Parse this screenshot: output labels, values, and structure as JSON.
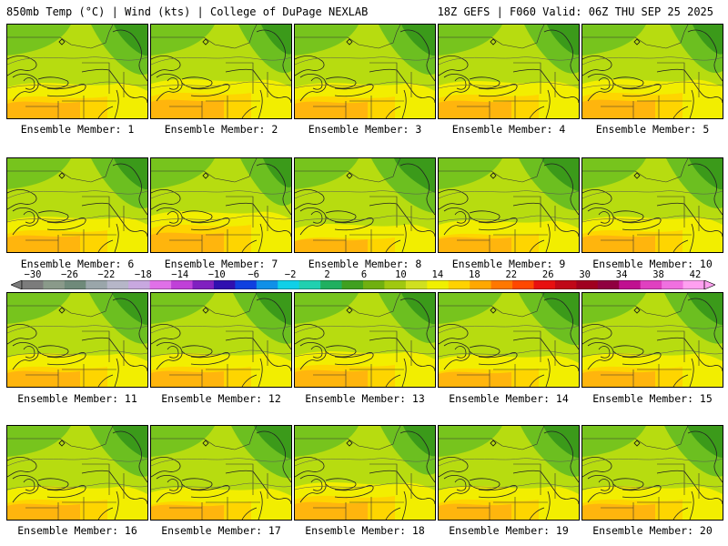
{
  "header": {
    "left": "850mb Temp (°C) | Wind (kts) | College of DuPage NEXLAB",
    "right": "18Z GEFS | F060 Valid: 06Z THU SEP 25 2025"
  },
  "members": [
    {
      "label": "Ensemble Member: 1",
      "warmth": 0.55
    },
    {
      "label": "Ensemble Member: 2",
      "warmth": 0.65
    },
    {
      "label": "Ensemble Member: 3",
      "warmth": 0.55
    },
    {
      "label": "Ensemble Member: 4",
      "warmth": 0.6
    },
    {
      "label": "Ensemble Member: 5",
      "warmth": 0.65
    },
    {
      "label": "Ensemble Member: 6",
      "warmth": 0.55
    },
    {
      "label": "Ensemble Member: 7",
      "warmth": 0.7
    },
    {
      "label": "Ensemble Member: 8",
      "warmth": 0.35
    },
    {
      "label": "Ensemble Member: 9",
      "warmth": 0.45
    },
    {
      "label": "Ensemble Member: 10",
      "warmth": 0.55
    },
    {
      "label": "Ensemble Member: 11",
      "warmth": 0.5
    },
    {
      "label": "Ensemble Member: 12",
      "warmth": 0.5
    },
    {
      "label": "Ensemble Member: 13",
      "warmth": 0.55
    },
    {
      "label": "Ensemble Member: 14",
      "warmth": 0.45
    },
    {
      "label": "Ensemble Member: 15",
      "warmth": 0.5
    },
    {
      "label": "Ensemble Member: 16",
      "warmth": 0.5
    },
    {
      "label": "Ensemble Member: 17",
      "warmth": 0.45
    },
    {
      "label": "Ensemble Member: 18",
      "warmth": 0.6
    },
    {
      "label": "Ensemble Member: 19",
      "warmth": 0.5
    },
    {
      "label": "Ensemble Member: 20",
      "warmth": 0.5
    }
  ],
  "colorbar": {
    "ticks": [
      "−30",
      "−26",
      "−22",
      "−18",
      "−14",
      "−10",
      "−6",
      "−2",
      "2",
      "6",
      "10",
      "14",
      "18",
      "22",
      "26",
      "30",
      "34",
      "38",
      "42"
    ],
    "colors": [
      "#7c7c7c",
      "#8a9a8a",
      "#6f8a7a",
      "#9aa6aa",
      "#b6b6c8",
      "#c8a8e0",
      "#e070e8",
      "#c040d8",
      "#8020c0",
      "#3010b0",
      "#1040e0",
      "#1090e8",
      "#10d0e8",
      "#20d0b0",
      "#20b060",
      "#40a020",
      "#70b010",
      "#a0c810",
      "#d0e020",
      "#f0f000",
      "#ffd200",
      "#ffa800",
      "#ff7800",
      "#ff4800",
      "#e81010",
      "#c00818",
      "#a00020",
      "#900040",
      "#c01090",
      "#e040c0",
      "#f070e0",
      "#ffa0f0"
    ],
    "palette": {
      "green_dark": "#3b9a1a",
      "green": "#6cbf20",
      "lime": "#b7dc10",
      "yellow": "#f2ee00",
      "gold": "#ffd200",
      "orange": "#ffad10"
    }
  }
}
